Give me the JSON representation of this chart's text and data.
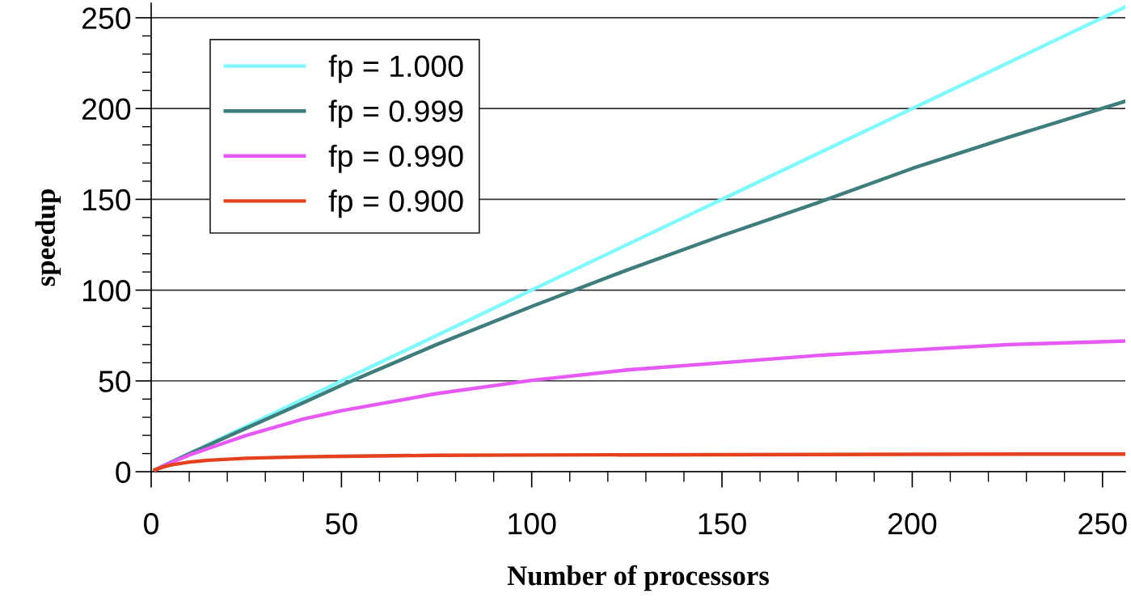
{
  "chart_data": {
    "type": "line",
    "xlabel": "Number of processors",
    "ylabel": "speedup",
    "xlim": [
      0,
      256
    ],
    "ylim": [
      0,
      258
    ],
    "xticks": [
      0,
      50,
      100,
      150,
      200,
      250
    ],
    "yticks": [
      0,
      50,
      100,
      150,
      200,
      250
    ],
    "grid": "y",
    "legend": "top left",
    "line_style": "solid",
    "marker": "none",
    "series": [
      {
        "name": "fp = 1.000",
        "color": "#80f8fc",
        "x": [
          1,
          50,
          100,
          150,
          200,
          256
        ],
        "values": [
          1,
          50,
          100,
          150,
          200,
          256
        ]
      },
      {
        "name": "fp = 0.999",
        "color": "#3f7d7d",
        "x": [
          1,
          10,
          25,
          40,
          50,
          75,
          100,
          125,
          150,
          175,
          200,
          225,
          256
        ],
        "values": [
          1,
          9.9,
          24,
          38,
          47.6,
          70,
          91,
          111,
          130,
          148,
          167,
          184,
          204
        ]
      },
      {
        "name": "fp = 0.990",
        "color": "#e659f5",
        "x": [
          1,
          5,
          10,
          25,
          40,
          50,
          75,
          100,
          125,
          150,
          175,
          200,
          225,
          256
        ],
        "values": [
          1,
          4.8,
          9.2,
          20,
          29,
          33.6,
          43,
          50.3,
          56,
          60,
          64,
          67,
          70,
          72
        ]
      },
      {
        "name": "fp = 0.900",
        "color": "#e4421e",
        "x": [
          1,
          3,
          5,
          10,
          15,
          25,
          40,
          50,
          75,
          100,
          150,
          200,
          256
        ],
        "values": [
          1,
          2.5,
          3.6,
          5.3,
          6.3,
          7.4,
          8.2,
          8.5,
          9,
          9.2,
          9.4,
          9.6,
          9.7
        ]
      }
    ]
  }
}
